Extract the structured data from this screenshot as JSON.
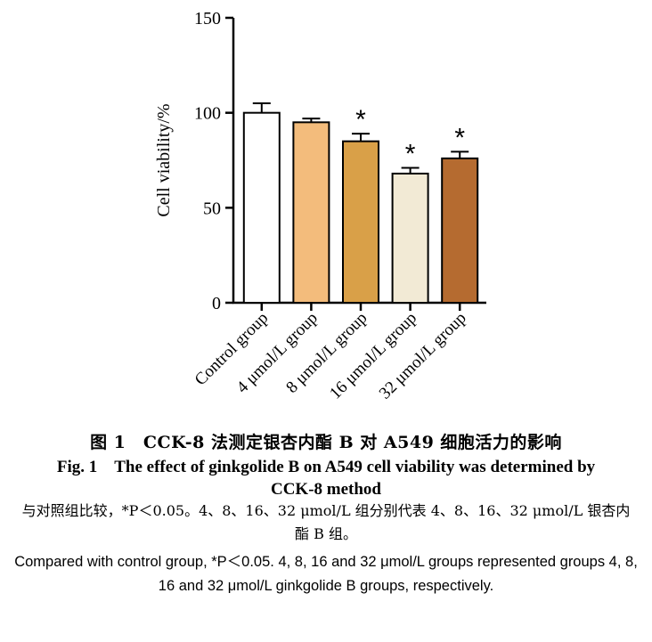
{
  "chart_data": {
    "type": "bar",
    "categories": [
      "Control group",
      "4 μmol/L group",
      "8 μmol/L group",
      "16 μmol/L group",
      "32 μmol/L group"
    ],
    "values": [
      100,
      95,
      85,
      68,
      76
    ],
    "errors": [
      5,
      2,
      4,
      3,
      3.5
    ],
    "significance": [
      "",
      "",
      "*",
      "*",
      "*"
    ],
    "colors": [
      "#ffffff",
      "#f3bc7c",
      "#d9a048",
      "#f2ead5",
      "#b56b30"
    ],
    "ylabel": "Cell viability/%",
    "ylim": [
      0,
      150
    ],
    "yticks": [
      0,
      50,
      100,
      150
    ],
    "grid": false
  },
  "caption": {
    "cn": "图 1　CCK-8 法测定银杏内酯 B 对 A549 细胞活力的影响",
    "en": "Fig. 1　The effect of ginkgolide B on A549 cell viability was determined by CCK-8 method"
  },
  "note": {
    "cn": "与对照组比较，*P＜0.05。4、8、16、32 μmol/L 组分别代表 4、8、16、32 μmol/L 银杏内酯 B 组。",
    "en": "Compared with control group, *P＜0.05. 4, 8, 16 and 32 μmol/L groups represented groups 4, 8, 16 and 32 μmol/L ginkgolide B groups, respectively."
  }
}
